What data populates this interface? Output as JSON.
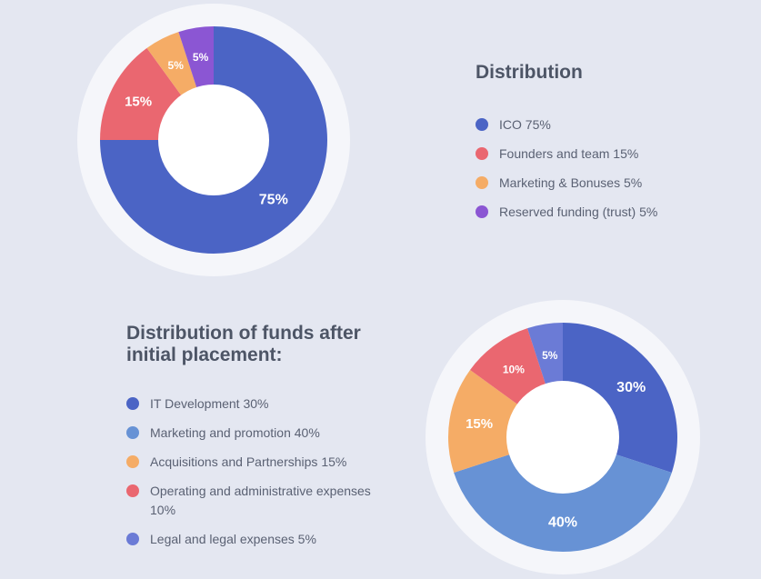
{
  "chart_data": [
    {
      "type": "pie",
      "title": "Distribution",
      "categories": [
        "ICO",
        "Founders and team",
        "Marketing & Bonuses",
        "Reserved funding (trust)"
      ],
      "values": [
        75,
        15,
        5,
        5
      ],
      "slice_labels": [
        "75%",
        "15%",
        "5%",
        "5%"
      ],
      "colors": [
        "#4b64c5",
        "#ea6770",
        "#f5ac66",
        "#8b56d3"
      ],
      "hole": "donut",
      "legend_position": "right",
      "legend_items": [
        {
          "label": "ICO 75%",
          "color": "#4b64c5"
        },
        {
          "label": "Founders and team 15%",
          "color": "#ea6770"
        },
        {
          "label": "Marketing & Bonuses 5%",
          "color": "#f5ac66"
        },
        {
          "label": "Reserved funding (trust) 5%",
          "color": "#8b56d3"
        }
      ]
    },
    {
      "type": "pie",
      "title": "Distribution of funds after initial placement:",
      "categories": [
        "IT Development",
        "Marketing and promotion",
        "Acquisitions and Partnerships",
        "Operating and administrative expenses",
        "Legal and legal expenses"
      ],
      "values": [
        30,
        40,
        15,
        10,
        5
      ],
      "slice_labels": [
        "30%",
        "40%",
        "15%",
        "10%",
        "5%"
      ],
      "colors": [
        "#4b64c5",
        "#6792d5",
        "#f5ac66",
        "#ea6770",
        "#6b7bd6"
      ],
      "hole": "donut",
      "legend_position": "left",
      "legend_items": [
        {
          "label": "IT Development 30%",
          "color": "#4b64c5"
        },
        {
          "label": "Marketing and promotion 40%",
          "color": "#6792d5"
        },
        {
          "label": "Acquisitions and Partnerships 15%",
          "color": "#f5ac66"
        },
        {
          "label": "Operating and administrative expenses 10%",
          "color": "#ea6770"
        },
        {
          "label": "Legal and legal expenses 5%",
          "color": "#6b7bd6"
        }
      ]
    }
  ]
}
